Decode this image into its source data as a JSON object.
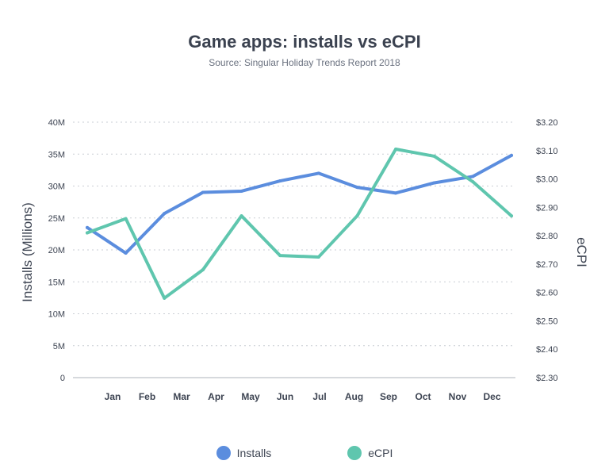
{
  "chart_data": {
    "type": "line",
    "title": "Game apps: installs vs eCPI",
    "subtitle": "Source: Singular Holiday Trends Report 2018",
    "categories": [
      "Jan",
      "Feb",
      "Mar",
      "Apr",
      "May",
      "Jun",
      "Jul",
      "Aug",
      "Sep",
      "Oct",
      "Nov",
      "Dec"
    ],
    "series": [
      {
        "name": "Installs",
        "axis": "left",
        "color": "#5b8dde",
        "values": [
          23.5,
          19.5,
          25.7,
          29.0,
          29.2,
          30.8,
          32.0,
          29.8,
          28.9,
          30.5,
          31.5,
          34.8
        ]
      },
      {
        "name": "eCPI",
        "axis": "right",
        "color": "#5fc6ae",
        "values": [
          2.81,
          2.86,
          2.58,
          2.68,
          2.87,
          2.73,
          2.725,
          2.87,
          3.105,
          3.08,
          2.99,
          2.87
        ]
      }
    ],
    "y_left": {
      "label": "Installs (Millions)",
      "min": 0,
      "max": 40,
      "ticks": [
        0,
        5,
        10,
        15,
        20,
        25,
        30,
        35,
        40
      ],
      "tick_labels": [
        "0",
        "5M",
        "10M",
        "15M",
        "20M",
        "25M",
        "30M",
        "35M",
        "40M"
      ]
    },
    "y_right": {
      "label": "eCPI",
      "min": 2.3,
      "max": 3.2,
      "ticks": [
        2.3,
        2.4,
        2.5,
        2.6,
        2.7,
        2.8,
        2.9,
        3.0,
        3.1,
        3.2
      ],
      "tick_labels": [
        "$2.30",
        "$2.40",
        "$2.50",
        "$2.60",
        "$2.70",
        "$2.80",
        "$2.90",
        "$3.00",
        "$3.10",
        "$3.20"
      ]
    },
    "grid": "dotted-horizontal",
    "legend": "bottom-center"
  }
}
